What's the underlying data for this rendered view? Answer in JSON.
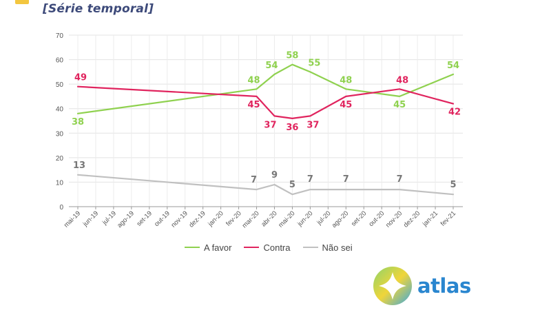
{
  "header": {
    "subtitle": "[Série temporal]"
  },
  "legend": [
    {
      "label": "A favor",
      "color": "#8fd14f"
    },
    {
      "label": "Contra",
      "color": "#e0245e"
    },
    {
      "label": "Não sei",
      "color": "#c0c0c0"
    }
  ],
  "logo": {
    "text": "atlas",
    "text_color": "#2a86cf"
  },
  "chart_data": {
    "type": "line",
    "categories": [
      "mai-19",
      "jun-19",
      "jul-19",
      "ago-19",
      "set-19",
      "out-19",
      "nov-19",
      "dez-19",
      "jan-20",
      "fev-20",
      "mar-20",
      "abr-20",
      "mai-20",
      "jun-20",
      "jul-20",
      "ago-20",
      "set-20",
      "out-20",
      "nov-20",
      "dez-20",
      "jan-21",
      "fev-21"
    ],
    "series": [
      {
        "name": "A favor",
        "color": "#8fd14f",
        "label_color": "#8fd14f",
        "values": [
          38,
          null,
          null,
          null,
          null,
          null,
          null,
          null,
          null,
          null,
          48,
          54,
          58,
          55,
          null,
          48,
          null,
          null,
          45,
          null,
          null,
          54
        ]
      },
      {
        "name": "Contra",
        "color": "#e0245e",
        "label_color": "#e0245e",
        "values": [
          49,
          null,
          null,
          null,
          null,
          null,
          null,
          null,
          null,
          null,
          45,
          37,
          36,
          37,
          null,
          45,
          null,
          null,
          48,
          null,
          null,
          42
        ]
      },
      {
        "name": "Não sei",
        "color": "#c0c0c0",
        "label_color": "#777777",
        "values": [
          13,
          null,
          null,
          null,
          null,
          null,
          null,
          null,
          null,
          null,
          7,
          9,
          5,
          7,
          null,
          7,
          null,
          null,
          7,
          null,
          null,
          5
        ]
      }
    ],
    "yticks": [
      0,
      10,
      20,
      30,
      40,
      50,
      60,
      70
    ],
    "ylim": [
      0,
      70
    ],
    "grid": true
  }
}
